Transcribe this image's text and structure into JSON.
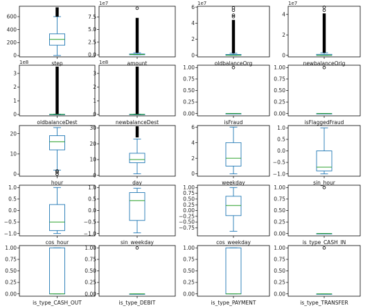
{
  "chart_data": [
    {
      "type": "box",
      "label": "step",
      "ylim": [
        -20,
        760
      ],
      "yticks": [
        0,
        200,
        400,
        600
      ],
      "tick_labels": [
        "0",
        "200",
        "400",
        "600"
      ],
      "scale": "",
      "box": {
        "whislo": 1,
        "q1": 160,
        "med": 250,
        "q3": 335,
        "whishi": 600
      },
      "outliers": {
        "from": 600,
        "to": 743,
        "dense": true,
        "points": []
      }
    },
    {
      "type": "box",
      "label": "amount",
      "ylim": [
        -0.4,
        9.6
      ],
      "yticks": [
        0,
        2.5,
        5.0,
        7.5
      ],
      "tick_labels": [
        "0.0",
        "2.5",
        "5.0",
        "7.5"
      ],
      "scale": "1e7",
      "box": {
        "whislo": 0,
        "q1": 0.02,
        "med": 0.08,
        "q3": 0.17,
        "whishi": 0.4
      },
      "outliers": {
        "from": 0.4,
        "to": 7.3,
        "dense": true,
        "points": [
          9.2
        ]
      }
    },
    {
      "type": "box",
      "label": "oldbalanceOrg",
      "ylim": [
        -0.2,
        6.1
      ],
      "yticks": [
        0,
        2,
        4,
        6
      ],
      "tick_labels": [
        "0",
        "2",
        "4",
        "6"
      ],
      "scale": "1e7",
      "box": {
        "whislo": 0,
        "q1": 0,
        "med": 0.01,
        "q3": 0.1,
        "whishi": 0.25
      },
      "outliers": {
        "from": 0.25,
        "to": 4.4,
        "dense": true,
        "points": [
          4.8,
          5.0,
          5.6,
          5.9
        ]
      }
    },
    {
      "type": "box",
      "label": "newbalanceOrig",
      "ylim": [
        -0.15,
        4.8
      ],
      "yticks": [
        0,
        2,
        4
      ],
      "tick_labels": [
        "0",
        "2",
        "4"
      ],
      "scale": "1e7",
      "box": {
        "whislo": 0,
        "q1": 0,
        "med": 0,
        "q3": 0.1,
        "whishi": 0.25
      },
      "outliers": {
        "from": 0.25,
        "to": 4.1,
        "dense": true,
        "points": [
          4.4,
          4.7
        ]
      }
    },
    {
      "type": "box",
      "label": "oldbalanceDest",
      "ylim": [
        -0.1,
        3.6
      ],
      "yticks": [
        0,
        1,
        2,
        3
      ],
      "tick_labels": [
        "0",
        "1",
        "2",
        "3"
      ],
      "scale": "1e8",
      "box": {
        "whislo": 0,
        "q1": 0,
        "med": 0.01,
        "q3": 0.01,
        "whishi": 0.03
      },
      "outliers": {
        "from": 0.03,
        "to": 3.5,
        "dense": true,
        "points": []
      }
    },
    {
      "type": "box",
      "label": "newbalanceDest",
      "ylim": [
        -0.1,
        3.6
      ],
      "yticks": [
        0,
        1,
        2,
        3
      ],
      "tick_labels": [
        "0",
        "1",
        "2",
        "3"
      ],
      "scale": "1e8",
      "box": {
        "whislo": 0,
        "q1": 0,
        "med": 0.01,
        "q3": 0.01,
        "whishi": 0.03
      },
      "outliers": {
        "from": 0.03,
        "to": 3.5,
        "dense": true,
        "points": []
      }
    },
    {
      "type": "box",
      "label": "isFraud",
      "ylim": [
        -0.05,
        1.05
      ],
      "yticks": [
        0,
        0.25,
        0.5,
        0.75,
        1.0
      ],
      "tick_labels": [
        "0.00",
        "0.25",
        "0.50",
        "0.75",
        "1.00"
      ],
      "scale": "",
      "box": {
        "whislo": 0,
        "q1": 0,
        "med": 0,
        "q3": 0,
        "whishi": 0
      },
      "outliers": {
        "from": 1,
        "to": 1,
        "dense": false,
        "points": [
          1
        ]
      }
    },
    {
      "type": "box",
      "label": "isFlaggedFraud",
      "ylim": [
        -0.05,
        1.05
      ],
      "yticks": [
        0,
        0.25,
        0.5,
        0.75,
        1.0
      ],
      "tick_labels": [
        "0.00",
        "0.25",
        "0.50",
        "0.75",
        "1.00"
      ],
      "scale": "",
      "box": {
        "whislo": 0,
        "q1": 0,
        "med": 0,
        "q3": 0,
        "whishi": 0
      },
      "outliers": {
        "from": 1,
        "to": 1,
        "dense": false,
        "points": [
          1
        ]
      }
    },
    {
      "type": "box",
      "label": "hour",
      "ylim": [
        -1,
        24
      ],
      "yticks": [
        0,
        10,
        20
      ],
      "tick_labels": [
        "0",
        "10",
        "20"
      ],
      "scale": "",
      "box": {
        "whislo": 2,
        "q1": 12,
        "med": 16,
        "q3": 19,
        "whishi": 23
      },
      "outliers": {
        "from": 0,
        "to": 0,
        "dense": false,
        "points": [
          0,
          1,
          1.6
        ]
      }
    },
    {
      "type": "box",
      "label": "day",
      "ylim": [
        -0.5,
        31.5
      ],
      "yticks": [
        0,
        10,
        20,
        30
      ],
      "tick_labels": [
        "0",
        "10",
        "20",
        "30"
      ],
      "scale": "",
      "box": {
        "whislo": 1,
        "q1": 8,
        "med": 10,
        "q3": 14,
        "whishi": 23
      },
      "outliers": {
        "from": 24,
        "to": 31,
        "dense": true,
        "points": []
      }
    },
    {
      "type": "box",
      "label": "weekday",
      "ylim": [
        -0.3,
        6.2
      ],
      "yticks": [
        0,
        2,
        4,
        6
      ],
      "tick_labels": [
        "0",
        "2",
        "4",
        "6"
      ],
      "scale": "",
      "box": {
        "whislo": 0,
        "q1": 1,
        "med": 2,
        "q3": 4,
        "whishi": 6
      },
      "outliers": {
        "from": 0,
        "to": 0,
        "dense": false,
        "points": []
      }
    },
    {
      "type": "box",
      "label": "sin_hour",
      "ylim": [
        -1.1,
        1.1
      ],
      "yticks": [
        -1.0,
        -0.5,
        0,
        0.5,
        1.0
      ],
      "tick_labels": [
        "−1.0",
        "−0.5",
        "0.0",
        "0.5",
        "1.0"
      ],
      "scale": "",
      "box": {
        "whislo": -1,
        "q1": -0.87,
        "med": -0.71,
        "q3": 0,
        "whishi": 1
      },
      "outliers": {
        "from": 0,
        "to": 0,
        "dense": false,
        "points": []
      }
    },
    {
      "type": "box",
      "label": "cos_hour",
      "ylim": [
        -1.1,
        1.1
      ],
      "yticks": [
        -1.0,
        -0.5,
        0,
        0.5,
        1.0
      ],
      "tick_labels": [
        "−1.0",
        "−0.5",
        "0.0",
        "0.5",
        "1.0"
      ],
      "scale": "",
      "box": {
        "whislo": -1,
        "q1": -0.87,
        "med": -0.5,
        "q3": 0.26,
        "whishi": 1
      },
      "outliers": {
        "from": 0,
        "to": 0,
        "dense": false,
        "points": []
      }
    },
    {
      "type": "box",
      "label": "sin_weekday",
      "ylim": [
        -1.1,
        1.1
      ],
      "yticks": [
        -1.0,
        -0.5,
        0,
        0.5,
        1.0
      ],
      "tick_labels": [
        "−1.0",
        "−0.5",
        "0.0",
        "0.5",
        "1.0"
      ],
      "scale": "",
      "box": {
        "whislo": -0.97,
        "q1": -0.43,
        "med": 0.43,
        "q3": 0.78,
        "whishi": 0.97
      },
      "outliers": {
        "from": 0,
        "to": 0,
        "dense": false,
        "points": []
      }
    },
    {
      "type": "box",
      "label": "cos_weekday",
      "ylim": [
        -1.1,
        1.1
      ],
      "yticks": [
        -0.75,
        -0.5,
        -0.25,
        0,
        0.25,
        0.5,
        0.75,
        1.0
      ],
      "tick_labels": [
        "−0.75",
        "−0.50",
        "−0.25",
        "0.00",
        "0.25",
        "0.50",
        "0.75",
        "1.00"
      ],
      "scale": "",
      "box": {
        "whislo": -0.9,
        "q1": -0.22,
        "med": 0.22,
        "q3": 0.62,
        "whishi": 1
      },
      "outliers": {
        "from": 0,
        "to": 0,
        "dense": false,
        "points": []
      }
    },
    {
      "type": "box",
      "label": "is_type_CASH_IN",
      "ylim": [
        -0.05,
        1.05
      ],
      "yticks": [
        0,
        0.25,
        0.5,
        0.75,
        1.0
      ],
      "tick_labels": [
        "0.00",
        "0.25",
        "0.50",
        "0.75",
        "1.00"
      ],
      "scale": "",
      "box": {
        "whislo": 0,
        "q1": 0,
        "med": 0,
        "q3": 0,
        "whishi": 0
      },
      "outliers": {
        "from": 1,
        "to": 1,
        "dense": false,
        "points": [
          1
        ]
      }
    },
    {
      "type": "box",
      "label": "is_type_CASH_OUT",
      "ylim": [
        -0.05,
        1.05
      ],
      "yticks": [
        0,
        0.25,
        0.5,
        0.75,
        1.0
      ],
      "tick_labels": [
        "0.00",
        "0.25",
        "0.50",
        "0.75",
        "1.00"
      ],
      "scale": "",
      "box": {
        "whislo": 0,
        "q1": 0,
        "med": 0,
        "q3": 1,
        "whishi": 1
      },
      "outliers": {
        "from": 0,
        "to": 0,
        "dense": false,
        "points": []
      }
    },
    {
      "type": "box",
      "label": "is_type_DEBIT",
      "ylim": [
        -0.05,
        1.05
      ],
      "yticks": [
        0,
        0.25,
        0.5,
        0.75,
        1.0
      ],
      "tick_labels": [
        "0.00",
        "0.25",
        "0.50",
        "0.75",
        "1.00"
      ],
      "scale": "",
      "box": {
        "whislo": 0,
        "q1": 0,
        "med": 0,
        "q3": 0,
        "whishi": 0
      },
      "outliers": {
        "from": 1,
        "to": 1,
        "dense": false,
        "points": [
          1
        ]
      }
    },
    {
      "type": "box",
      "label": "is_type_PAYMENT",
      "ylim": [
        -0.05,
        1.05
      ],
      "yticks": [
        0,
        0.25,
        0.5,
        0.75,
        1.0
      ],
      "tick_labels": [
        "0.00",
        "0.25",
        "0.50",
        "0.75",
        "1.00"
      ],
      "scale": "",
      "box": {
        "whislo": 0,
        "q1": 0,
        "med": 0,
        "q3": 1,
        "whishi": 1
      },
      "outliers": {
        "from": 0,
        "to": 0,
        "dense": false,
        "points": []
      }
    },
    {
      "type": "box",
      "label": "is_type_TRANSFER",
      "ylim": [
        -0.05,
        1.05
      ],
      "yticks": [
        0,
        0.25,
        0.5,
        0.75,
        1.0
      ],
      "tick_labels": [
        "0.00",
        "0.25",
        "0.50",
        "0.75",
        "1.00"
      ],
      "scale": "",
      "box": {
        "whislo": 0,
        "q1": 0,
        "med": 0,
        "q3": 0,
        "whishi": 0
      },
      "outliers": {
        "from": 1,
        "to": 1,
        "dense": false,
        "points": [
          1
        ]
      }
    }
  ],
  "colors": {
    "box": "#1f77b4",
    "median": "#2ca02c",
    "axis": "#000000",
    "outlier": "#000000"
  }
}
